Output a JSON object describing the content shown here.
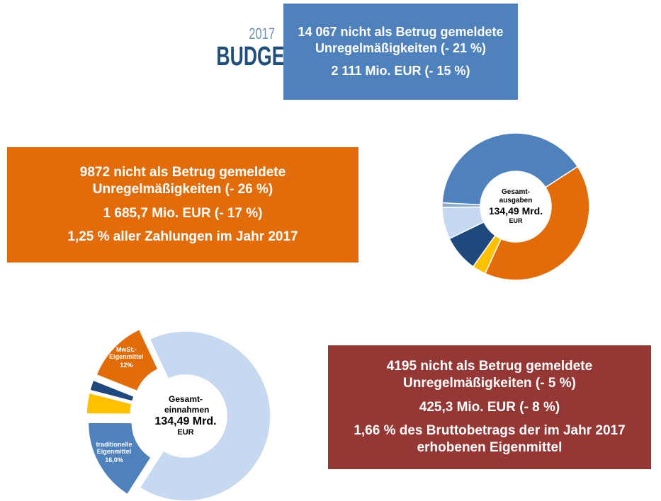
{
  "logo": {
    "year": "2017",
    "word": "BUDGET"
  },
  "boxes": [
    {
      "lines": [
        "14 067 nicht als Betrug gemeldete Unregelmäßigkeiten (- 21 %)",
        "2 111 Mio. EUR (- 15 %)"
      ]
    },
    {
      "lines": [
        "9872 nicht als Betrug gemeldete Unregelmäßigkeiten (- 26 %)",
        "1 685,7 Mio. EUR (- 17 %)",
        "1,25 % aller Zahlungen im Jahr 2017"
      ]
    },
    {
      "lines": [
        "4195 nicht als Betrug gemeldete Unregelmäßigkeiten (- 5 %)",
        "425,3 Mio. EUR (- 8 %)",
        "1,66 % des Bruttobetrags der im Jahr 2017 erhobenen Eigenmittel"
      ]
    }
  ],
  "chart_data": [
    {
      "type": "donut",
      "center_lines": [
        "Gesamt-ausgaben",
        "134,49 Mrd.",
        "EUR"
      ],
      "values": [
        41,
        3,
        8,
        7,
        1,
        40
      ],
      "colors": [
        "#e36c0a",
        "#ffc000",
        "#1f497d",
        "#c6d9f1",
        "#8ea9c8",
        "#4f81bd"
      ],
      "explode": [
        false,
        false,
        false,
        false,
        false,
        false
      ]
    },
    {
      "type": "donut",
      "center_lines": [
        "Gesamt-einnahmen",
        "134,49 Mrd.",
        "EUR"
      ],
      "values": [
        66,
        16,
        4,
        2,
        12
      ],
      "labels": [
        null,
        "traditionelle Eigenmittel",
        null,
        null,
        "MwSt.-Eigenmittel"
      ],
      "value_labels": [
        null,
        "16,0%",
        null,
        null,
        "12%"
      ],
      "colors": [
        "#c6d9f1",
        "#4f81bd",
        "#ffc000",
        "#1f497d",
        "#e36c0a"
      ],
      "explode": [
        false,
        true,
        true,
        true,
        true
      ]
    }
  ]
}
